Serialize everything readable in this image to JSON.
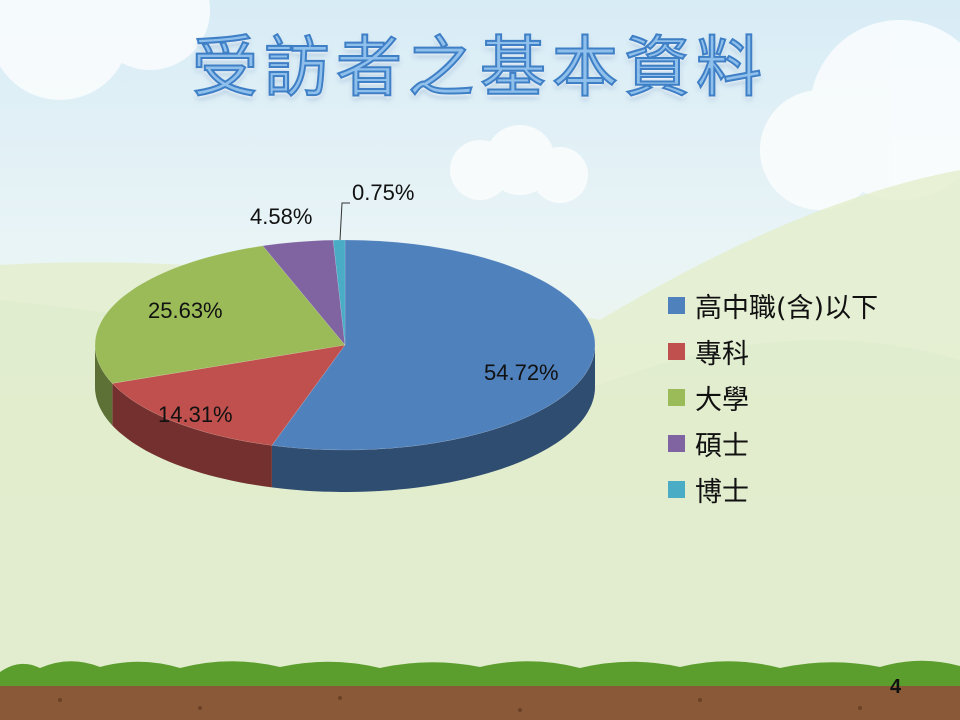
{
  "title": "受訪者之基本資料",
  "page_number": "4",
  "chart_data": {
    "type": "pie",
    "style": "3d",
    "categories": [
      "高中職(含)以下",
      "專科",
      "大學",
      "碩士",
      "博士"
    ],
    "values": [
      54.72,
      14.31,
      25.63,
      4.58,
      0.75
    ],
    "data_labels": [
      "54.72%",
      "14.31%",
      "25.63%",
      "4.58%",
      "0.75%"
    ],
    "colors": [
      "#4f81bd",
      "#c0504d",
      "#9bbb59",
      "#8064a2",
      "#4bacc6"
    ],
    "legend_position": "right",
    "title": ""
  }
}
